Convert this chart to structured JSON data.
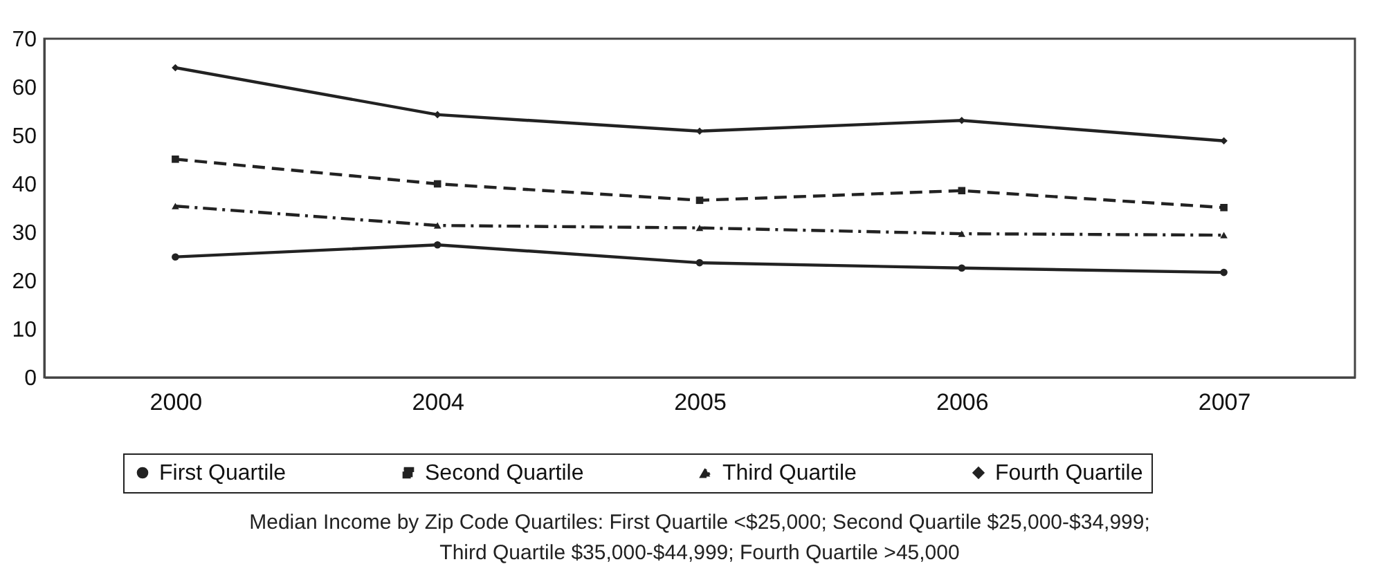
{
  "chart_data": {
    "type": "line",
    "categories": [
      "2000",
      "2004",
      "2005",
      "2006",
      "2007"
    ],
    "series": [
      {
        "name": "First Quartile",
        "color": "#222222",
        "marker": "circle",
        "line_style": "solid",
        "values": [
          24.9,
          27.4,
          23.7,
          22.6,
          21.7
        ]
      },
      {
        "name": "Second Quartile",
        "color": "#222222",
        "marker": "square",
        "line_style": "dashed",
        "values": [
          45.1,
          40.0,
          36.6,
          38.6,
          35.1
        ]
      },
      {
        "name": "Third Quartile",
        "color": "#222222",
        "marker": "triangle",
        "line_style": "dashdot",
        "values": [
          35.4,
          31.4,
          30.9,
          29.7,
          29.4
        ]
      },
      {
        "name": "Fourth Quartile",
        "color": "#222222",
        "marker": "diamond",
        "line_style": "solid",
        "values": [
          64.0,
          54.3,
          50.9,
          53.1,
          48.9
        ]
      }
    ],
    "ylim": [
      0,
      70
    ],
    "yticks": [
      0,
      10,
      20,
      30,
      40,
      50,
      60,
      70
    ],
    "grid": false,
    "legend": "bottom",
    "annotations": [
      "Median Income by Zip Code Quartiles: First Quartile <$25,000; Second Quartile $25,000-$34,999;",
      "Third Quartile $35,000-$44,999; Fourth Quartile >45,000"
    ]
  }
}
